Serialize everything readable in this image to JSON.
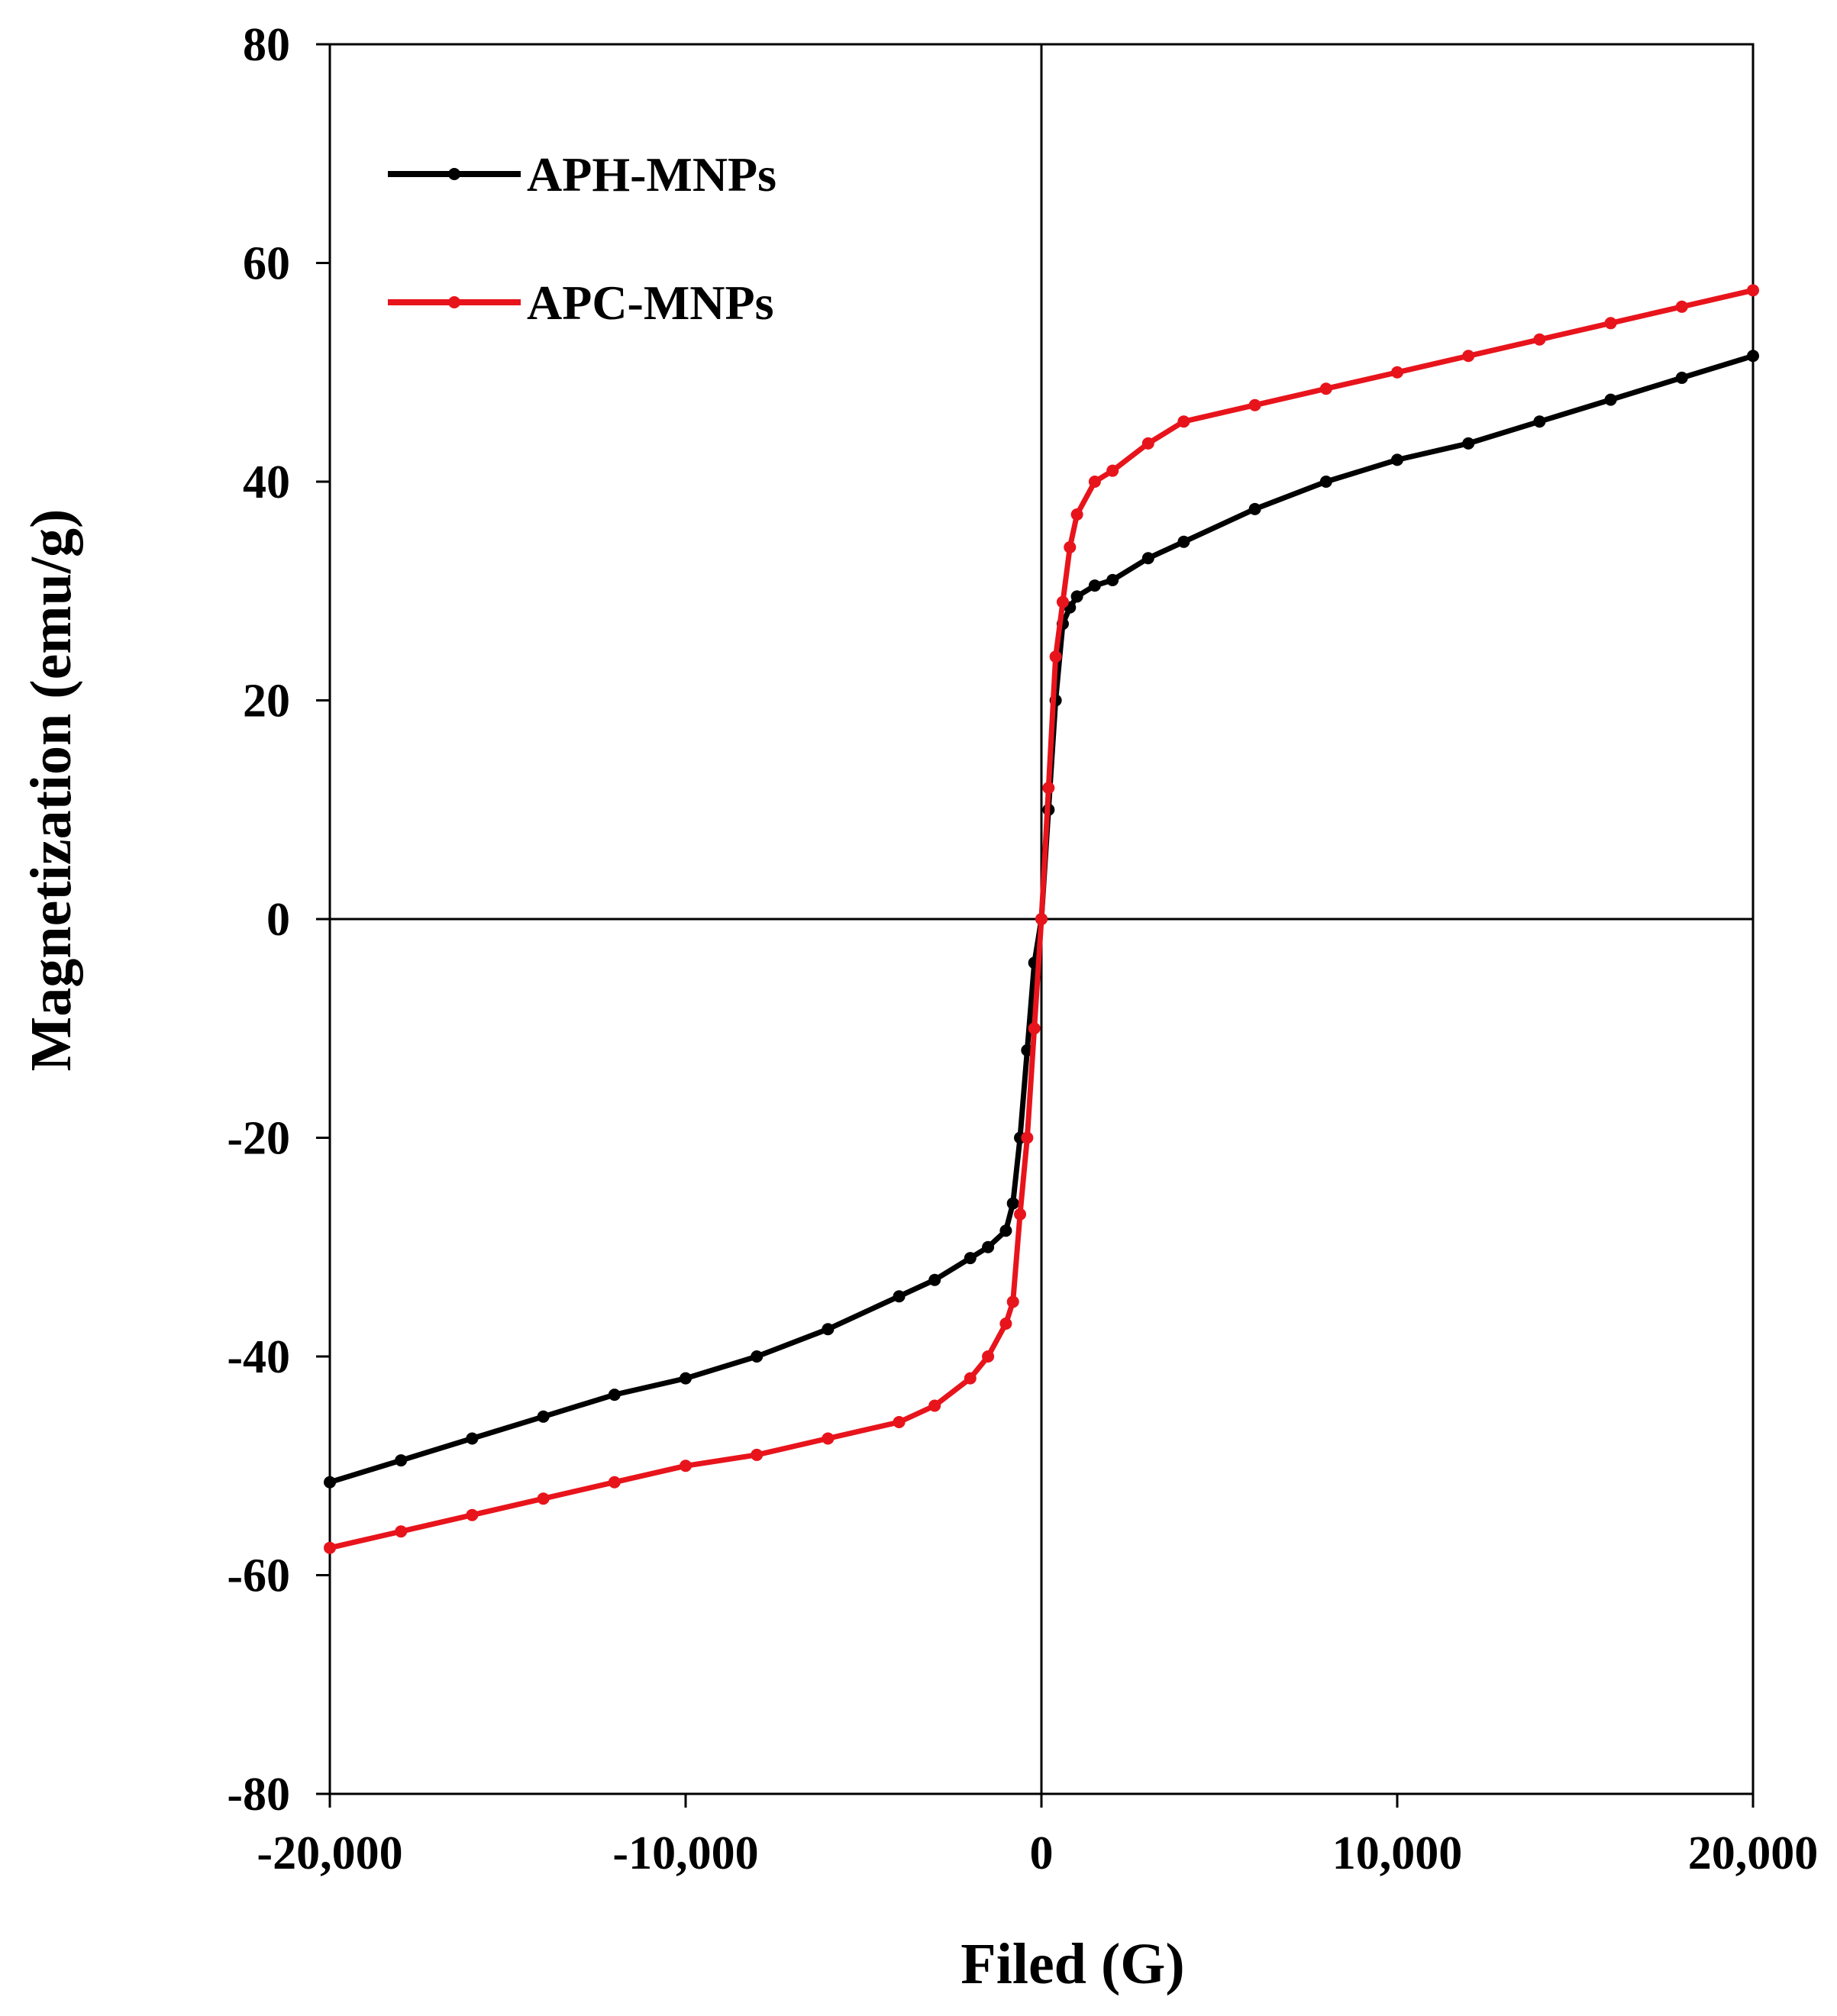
{
  "chart_data": {
    "type": "line",
    "title": "",
    "xlabel": "Filed (G)",
    "ylabel": "Magnetization (emu/g)",
    "xlim": [
      -20000,
      20000
    ],
    "ylim": [
      -80,
      80
    ],
    "xticks": [
      -20000,
      -10000,
      0,
      10000,
      20000
    ],
    "xtick_labels": [
      "-20,000",
      "-10,000",
      "0",
      "10,000",
      "20,000"
    ],
    "yticks": [
      80,
      60,
      40,
      20,
      0,
      -20,
      -40,
      -60,
      -80
    ],
    "ytick_labels": [
      "80",
      "60",
      "40",
      "20",
      "0",
      "-20",
      "-40",
      "-60",
      "-80"
    ],
    "grid": false,
    "legend_position": "top-left",
    "series": [
      {
        "name": "APH-MNPs",
        "color": "#000000",
        "x": [
          -20000,
          -18000,
          -16000,
          -14000,
          -12000,
          -10000,
          -8000,
          -6000,
          -4000,
          -3000,
          -2000,
          -1500,
          -1000,
          -800,
          -600,
          -400,
          -200,
          0,
          200,
          400,
          600,
          800,
          1000,
          1500,
          2000,
          3000,
          4000,
          6000,
          8000,
          10000,
          12000,
          14000,
          16000,
          18000,
          20000
        ],
        "y": [
          -51.5,
          -49.5,
          -47.5,
          -45.5,
          -43.5,
          -42,
          -40,
          -37.5,
          -34.5,
          -33,
          -31,
          -30,
          -28.5,
          -26,
          -20,
          -12,
          -4,
          0,
          10,
          20,
          27,
          28.5,
          29.5,
          30.5,
          31,
          33,
          34.5,
          37.5,
          40,
          42,
          43.5,
          45.5,
          47.5,
          49.5,
          51.5
        ]
      },
      {
        "name": "APC-MNPs",
        "color": "#e8141c",
        "x": [
          -20000,
          -18000,
          -16000,
          -14000,
          -12000,
          -10000,
          -8000,
          -6000,
          -4000,
          -3000,
          -2000,
          -1500,
          -1000,
          -800,
          -600,
          -400,
          -200,
          0,
          200,
          400,
          600,
          800,
          1000,
          1500,
          2000,
          3000,
          4000,
          6000,
          8000,
          10000,
          12000,
          14000,
          16000,
          18000,
          20000
        ],
        "y": [
          -57.5,
          -56,
          -54.5,
          -53,
          -51.5,
          -50,
          -49,
          -47.5,
          -46,
          -44.5,
          -42,
          -40,
          -37,
          -35,
          -27,
          -20,
          -10,
          0,
          12,
          24,
          29,
          34,
          37,
          40,
          41,
          43.5,
          45.5,
          47,
          48.5,
          50,
          51.5,
          53,
          54.5,
          56,
          57.5
        ]
      }
    ]
  }
}
